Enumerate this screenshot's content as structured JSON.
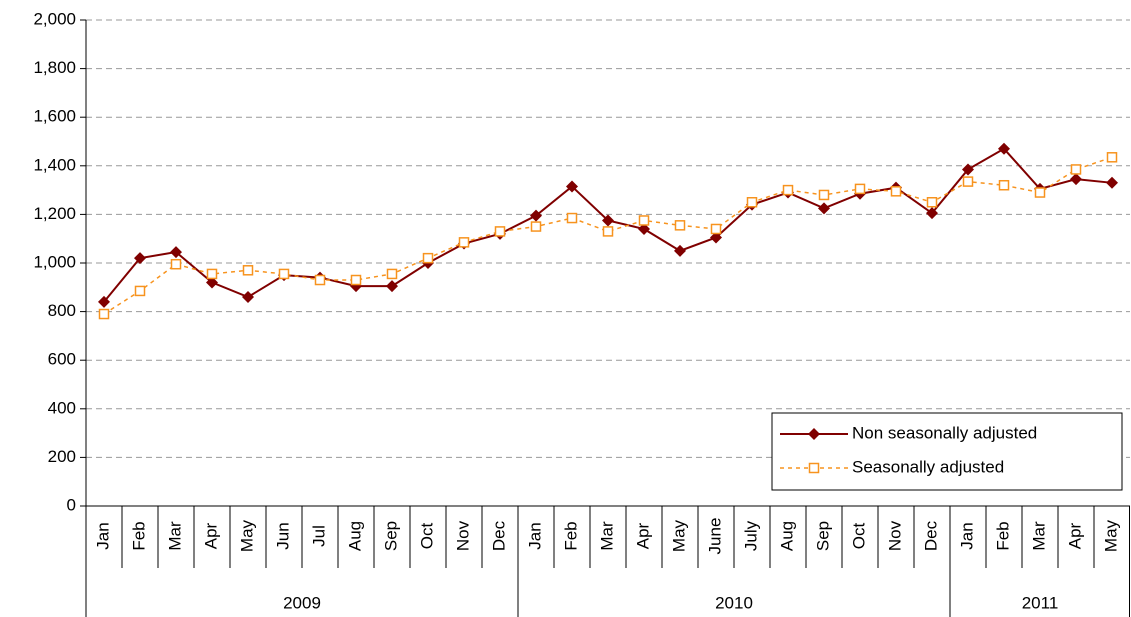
{
  "chart_data": {
    "type": "line",
    "groups": [
      {
        "label": "2009",
        "categories": [
          "Jan",
          "Feb",
          "Mar",
          "Apr",
          "May",
          "Jun",
          "Jul",
          "Aug",
          "Sep",
          "Oct",
          "Nov",
          "Dec"
        ]
      },
      {
        "label": "2010",
        "categories": [
          "Jan",
          "Feb",
          "Mar",
          "Apr",
          "May",
          "June",
          "July",
          "Aug",
          "Sep",
          "Oct",
          "Nov",
          "Dec"
        ]
      },
      {
        "label": "2011",
        "categories": [
          "Jan",
          "Feb",
          "Mar",
          "Apr",
          "May"
        ]
      }
    ],
    "series": [
      {
        "name": "Non seasonally adjusted",
        "color": "#800000",
        "marker": "diamond",
        "dash": false,
        "values": [
          840,
          1020,
          1045,
          920,
          860,
          950,
          940,
          905,
          905,
          1000,
          1080,
          1120,
          1195,
          1315,
          1175,
          1140,
          1050,
          1105,
          1240,
          1290,
          1225,
          1285,
          1310,
          1205,
          1385,
          1470,
          1305,
          1345,
          1330
        ]
      },
      {
        "name": "Seasonally adjusted",
        "color": "#f7931e",
        "marker": "square",
        "dash": true,
        "values": [
          790,
          885,
          995,
          955,
          970,
          955,
          930,
          930,
          955,
          1020,
          1085,
          1130,
          1150,
          1185,
          1130,
          1175,
          1155,
          1140,
          1250,
          1300,
          1280,
          1305,
          1295,
          1250,
          1335,
          1320,
          1290,
          1385,
          1435
        ]
      }
    ],
    "ylim": [
      0,
      2000
    ],
    "yticks": [
      0,
      {
        "value": 200,
        "label": "200"
      },
      400,
      600,
      800,
      {
        "value": 1000,
        "label": "1,000"
      },
      {
        "value": 1200,
        "label": "1,200"
      },
      {
        "value": 1400,
        "label": "1,400"
      },
      {
        "value": 1600,
        "label": "1,600"
      },
      {
        "value": 1800,
        "label": "1,800"
      },
      {
        "value": 2000,
        "label": "2,000"
      }
    ],
    "grid": true,
    "legend": "lower-right"
  }
}
